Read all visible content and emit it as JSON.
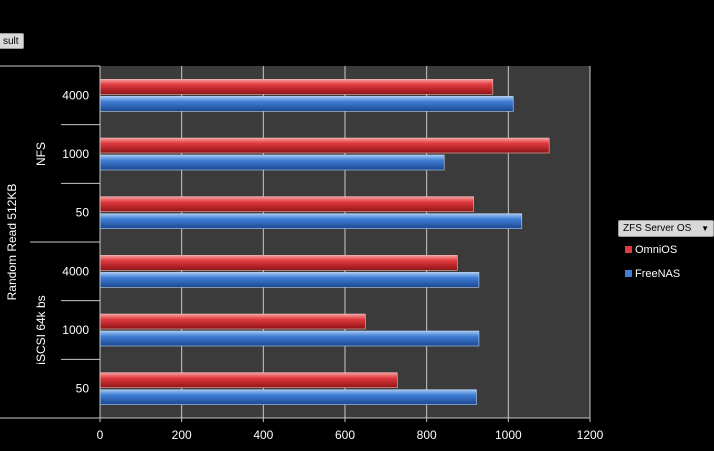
{
  "filter_button": {
    "label": "sult"
  },
  "legend": {
    "field_label": "ZFS Server OS",
    "items": [
      {
        "label": "OmniOS",
        "color": "#e03a3e"
      },
      {
        "label": "FreeNAS",
        "color": "#3f7fd6"
      }
    ]
  },
  "chart_data": {
    "type": "bar",
    "orientation": "horizontal",
    "xlim": [
      0,
      1200
    ],
    "x_ticks": [
      0,
      200,
      400,
      600,
      800,
      1000,
      1200
    ],
    "outer_label": "Random Read 512KB",
    "groups": [
      {
        "label": "NFS",
        "categories": [
          {
            "label": "4000",
            "OmniOS": 962,
            "FreeNAS": 1012
          },
          {
            "label": "1000",
            "OmniOS": 1100,
            "FreeNAS": 843
          },
          {
            "label": "50",
            "OmniOS": 915,
            "FreeNAS": 1033
          }
        ]
      },
      {
        "label": "iSCSI 64k bs",
        "categories": [
          {
            "label": "4000",
            "OmniOS": 875,
            "FreeNAS": 928
          },
          {
            "label": "1000",
            "OmniOS": 650,
            "FreeNAS": 928
          },
          {
            "label": "50",
            "OmniOS": 728,
            "FreeNAS": 922
          }
        ]
      }
    ],
    "series": [
      {
        "name": "OmniOS",
        "color": "#e03a3e"
      },
      {
        "name": "FreeNAS",
        "color": "#3f7fd6"
      }
    ],
    "grid": true,
    "legend_position": "right"
  }
}
